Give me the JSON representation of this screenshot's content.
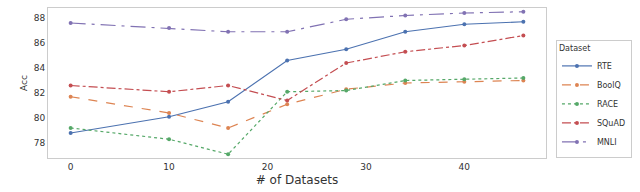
{
  "chart_data": {
    "type": "line",
    "x_label": "# of Datasets",
    "y_label": "Acc",
    "legend_title": "Dataset",
    "legend": "lower right",
    "grid": false,
    "x": [
      0,
      10,
      16,
      22,
      28,
      34,
      40,
      46
    ],
    "xlim": [
      -2.3,
      48.3
    ],
    "xticks": [
      0,
      10,
      20,
      30,
      40
    ],
    "ylim": [
      76.8,
      88.8
    ],
    "yticks": [
      78,
      80,
      82,
      84,
      86,
      88
    ],
    "series": [
      {
        "name": "RTE",
        "color": "#4c72b0",
        "line_style": "solid",
        "marker": "circle",
        "values": [
          78.8,
          80.1,
          81.3,
          84.6,
          85.5,
          86.9,
          87.5,
          87.7
        ]
      },
      {
        "name": "BoolQ",
        "color": "#dd8452",
        "line_style": "dash",
        "marker": "circle",
        "values": [
          81.7,
          80.4,
          79.2,
          81.1,
          82.3,
          82.8,
          82.9,
          83.0
        ]
      },
      {
        "name": "RACE",
        "color": "#55a868",
        "line_style": "dot",
        "marker": "circle",
        "values": [
          79.2,
          78.3,
          77.1,
          82.1,
          82.2,
          83.0,
          83.1,
          83.2
        ]
      },
      {
        "name": "SQuAD",
        "color": "#c44e52",
        "line_style": "dashdot",
        "marker": "circle",
        "values": [
          82.6,
          82.1,
          82.6,
          81.4,
          84.4,
          85.3,
          85.8,
          86.6
        ]
      },
      {
        "name": "MNLI",
        "color": "#8172b3",
        "line_style": "longdashdot",
        "marker": "circle",
        "values": [
          87.6,
          87.2,
          86.9,
          86.9,
          87.9,
          88.2,
          88.4,
          88.5
        ]
      }
    ]
  }
}
